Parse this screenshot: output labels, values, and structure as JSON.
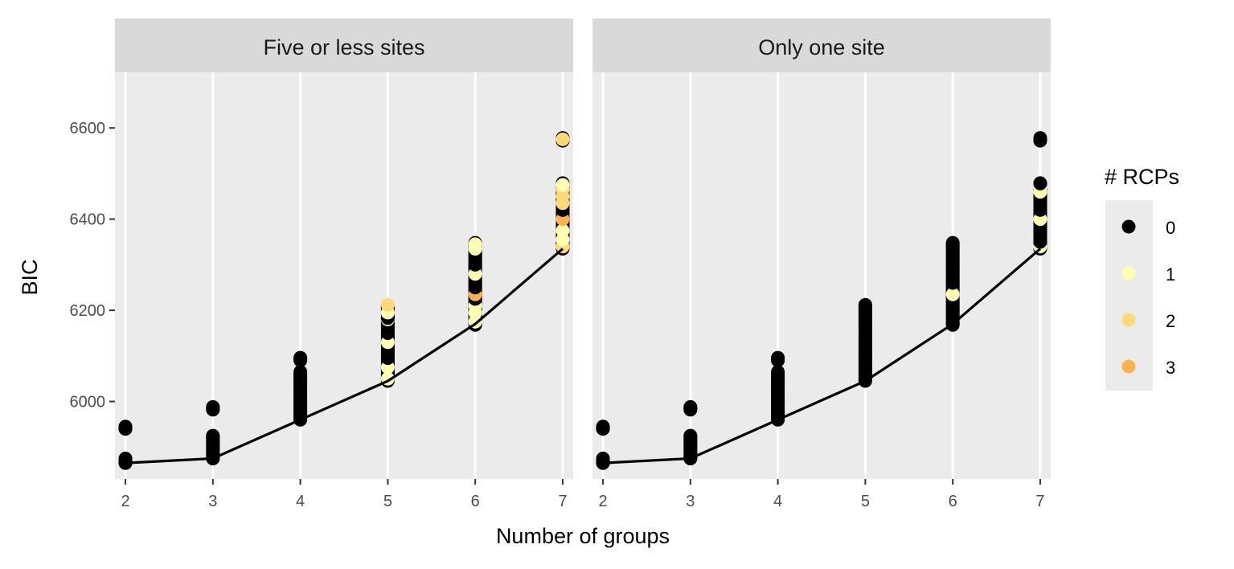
{
  "chart_data": {
    "type": "scatter",
    "xlabel": "Number of groups",
    "ylabel": "BIC",
    "xlim": [
      1.88,
      7.12
    ],
    "ylim": [
      5830,
      6722
    ],
    "x_ticks": [
      2,
      3,
      4,
      5,
      6,
      7
    ],
    "y_ticks": [
      6000,
      6200,
      6400,
      6600
    ],
    "grid": true,
    "legend": {
      "title": "# RCPs",
      "placement": "right",
      "entries": [
        {
          "label": "0",
          "color": "#000000"
        },
        {
          "label": "1",
          "color": "#FFFFB2"
        },
        {
          "label": "2",
          "color": "#FED976"
        },
        {
          "label": "3",
          "color": "#FEB24C"
        }
      ]
    },
    "panels": [
      {
        "title": "Five or less sites",
        "line": {
          "x": [
            2,
            3,
            4,
            5,
            6,
            7
          ],
          "y": [
            5865,
            5875,
            5960,
            6045,
            6170,
            6335
          ]
        },
        "groups": [
          {
            "x": 2,
            "min": 5865,
            "max": 5945,
            "clusters": [
              [
                5865,
                5875
              ],
              [
                5940,
                5945
              ]
            ],
            "colors": [
              [
                5865,
                0
              ],
              [
                5870,
                0
              ],
              [
                5875,
                0
              ],
              [
                5940,
                0
              ],
              [
                5945,
                0
              ]
            ]
          },
          {
            "x": 3,
            "min": 5875,
            "max": 5988,
            "clusters": [
              [
                5875,
                5925
              ],
              [
                5982,
                5988
              ]
            ],
            "colors": [
              [
                5875,
                0
              ],
              [
                5900,
                0
              ],
              [
                5925,
                0
              ],
              [
                5985,
                0
              ]
            ]
          },
          {
            "x": 4,
            "min": 5960,
            "max": 6098,
            "clusters": [
              [
                5960,
                6065
              ],
              [
                6090,
                6098
              ]
            ],
            "colors": [
              [
                5965,
                0
              ],
              [
                6000,
                0
              ],
              [
                6040,
                0
              ],
              [
                6095,
                0
              ]
            ]
          },
          {
            "x": 5,
            "min": 6045,
            "max": 6212,
            "clusters": [
              [
                6045,
                6212
              ]
            ],
            "colors": [
              [
                6050,
                1
              ],
              [
                6075,
                1
              ],
              [
                6095,
                0
              ],
              [
                6110,
                0
              ],
              [
                6130,
                1
              ],
              [
                6150,
                0
              ],
              [
                6165,
                0
              ],
              [
                6180,
                1
              ],
              [
                6183,
                0
              ],
              [
                6195,
                1
              ],
              [
                6212,
                2
              ]
            ]
          },
          {
            "x": 6,
            "min": 6168,
            "max": 6348,
            "clusters": [
              [
                6168,
                6348
              ]
            ],
            "colors": [
              [
                6175,
                1
              ],
              [
                6195,
                1
              ],
              [
                6210,
                1
              ],
              [
                6225,
                0
              ],
              [
                6235,
                3
              ],
              [
                6250,
                0
              ],
              [
                6265,
                0
              ],
              [
                6280,
                1
              ],
              [
                6300,
                0
              ],
              [
                6320,
                0
              ],
              [
                6335,
                1
              ],
              [
                6345,
                1
              ]
            ]
          },
          {
            "x": 7,
            "min": 6335,
            "max": 6575,
            "clusters": [
              [
                6335,
                6480
              ],
              [
                6572,
                6578
              ]
            ],
            "colors": [
              [
                6340,
                2
              ],
              [
                6355,
                1
              ],
              [
                6375,
                1
              ],
              [
                6400,
                3
              ],
              [
                6420,
                0
              ],
              [
                6435,
                2
              ],
              [
                6450,
                2
              ],
              [
                6465,
                2
              ],
              [
                6475,
                1
              ],
              [
                6575,
                2
              ]
            ]
          }
        ]
      },
      {
        "title": "Only one site",
        "line": {
          "x": [
            2,
            3,
            4,
            5,
            6,
            7
          ],
          "y": [
            5865,
            5875,
            5960,
            6045,
            6170,
            6335
          ]
        },
        "groups": [
          {
            "x": 2,
            "min": 5865,
            "max": 5945,
            "clusters": [
              [
                5865,
                5875
              ],
              [
                5940,
                5945
              ]
            ],
            "colors": [
              [
                5865,
                0
              ],
              [
                5870,
                0
              ],
              [
                5875,
                0
              ],
              [
                5940,
                0
              ],
              [
                5945,
                0
              ]
            ]
          },
          {
            "x": 3,
            "min": 5875,
            "max": 5988,
            "clusters": [
              [
                5875,
                5925
              ],
              [
                5982,
                5988
              ]
            ],
            "colors": [
              [
                5875,
                0
              ],
              [
                5900,
                0
              ],
              [
                5925,
                0
              ],
              [
                5985,
                0
              ]
            ]
          },
          {
            "x": 4,
            "min": 5960,
            "max": 6098,
            "clusters": [
              [
                5960,
                6065
              ],
              [
                6090,
                6098
              ]
            ],
            "colors": [
              [
                5965,
                0
              ],
              [
                6000,
                0
              ],
              [
                6040,
                0
              ],
              [
                6095,
                0
              ]
            ]
          },
          {
            "x": 5,
            "min": 6045,
            "max": 6212,
            "clusters": [
              [
                6045,
                6212
              ]
            ],
            "colors": [
              [
                6050,
                0
              ],
              [
                6100,
                0
              ],
              [
                6150,
                0
              ],
              [
                6212,
                0
              ]
            ]
          },
          {
            "x": 6,
            "min": 6168,
            "max": 6348,
            "clusters": [
              [
                6168,
                6348
              ]
            ],
            "colors": [
              [
                6170,
                0
              ],
              [
                6200,
                0
              ],
              [
                6235,
                1
              ],
              [
                6260,
                0
              ],
              [
                6300,
                0
              ],
              [
                6340,
                0
              ]
            ]
          },
          {
            "x": 7,
            "min": 6335,
            "max": 6575,
            "clusters": [
              [
                6335,
                6480
              ],
              [
                6572,
                6578
              ]
            ],
            "colors": [
              [
                6340,
                1
              ],
              [
                6350,
                0
              ],
              [
                6375,
                0
              ],
              [
                6400,
                1
              ],
              [
                6420,
                0
              ],
              [
                6440,
                0
              ],
              [
                6460,
                1
              ],
              [
                6470,
                1
              ],
              [
                6478,
                0
              ],
              [
                6575,
                0
              ]
            ]
          }
        ]
      }
    ]
  }
}
